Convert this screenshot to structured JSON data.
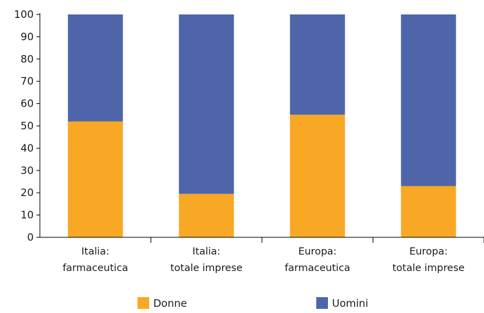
{
  "chart_data": {
    "type": "bar",
    "stacked": true,
    "categories": [
      [
        "Italia:",
        "farmaceutica"
      ],
      [
        "Italia:",
        "totale imprese"
      ],
      [
        "Europa:",
        "farmaceutica"
      ],
      [
        "Europa:",
        "totale imprese"
      ]
    ],
    "series": [
      {
        "name": "Donne",
        "color": "#F9A825",
        "values": [
          52,
          19.5,
          55,
          23
        ]
      },
      {
        "name": "Uomini",
        "color": "#4E65AA",
        "values": [
          48,
          80.5,
          45,
          77
        ]
      }
    ],
    "ylim": [
      0,
      100
    ],
    "yticks": [
      "0",
      "10",
      "20",
      "30",
      "40",
      "50",
      "60",
      "70",
      "80",
      "90",
      "100"
    ],
    "grid": false,
    "legend": "bottom"
  }
}
